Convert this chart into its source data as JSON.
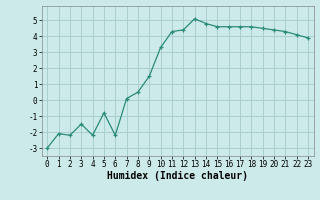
{
  "x": [
    0,
    1,
    2,
    3,
    4,
    5,
    6,
    7,
    8,
    9,
    10,
    11,
    12,
    13,
    14,
    15,
    16,
    17,
    18,
    19,
    20,
    21,
    22,
    23
  ],
  "y": [
    -3.0,
    -2.1,
    -2.2,
    -1.5,
    -2.2,
    -0.8,
    -2.2,
    0.1,
    0.5,
    1.5,
    3.3,
    4.3,
    4.4,
    5.1,
    4.8,
    4.6,
    4.6,
    4.6,
    4.6,
    4.5,
    4.4,
    4.3,
    4.1,
    3.9
  ],
  "xlabel": "Humidex (Indice chaleur)",
  "ylim": [
    -3.5,
    5.9
  ],
  "xlim": [
    -0.5,
    23.5
  ],
  "yticks": [
    -3,
    -2,
    -1,
    0,
    1,
    2,
    3,
    4,
    5
  ],
  "xticks": [
    0,
    1,
    2,
    3,
    4,
    5,
    6,
    7,
    8,
    9,
    10,
    11,
    12,
    13,
    14,
    15,
    16,
    17,
    18,
    19,
    20,
    21,
    22,
    23
  ],
  "line_color": "#2a8b78",
  "marker": "+",
  "bg_color": "#cdeaea",
  "grid_color": "#aacfcf",
  "tick_label_fontsize": 5.5,
  "xlabel_fontsize": 7.0
}
